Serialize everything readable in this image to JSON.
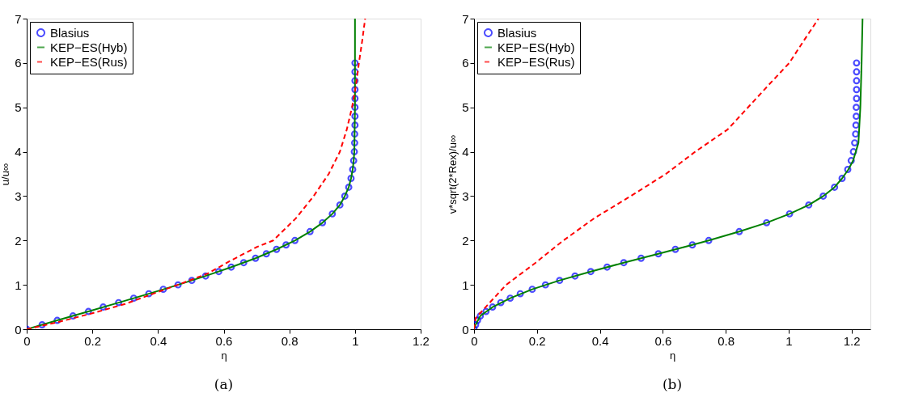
{
  "chart_data": [
    {
      "type": "line",
      "xlabel": "η",
      "ylabel": "u/u∞",
      "xlim": [
        0,
        1.2
      ],
      "ylim": [
        0,
        7
      ],
      "xticks": [
        0,
        0.2,
        0.4,
        0.6,
        0.8,
        1,
        1.2
      ],
      "yticks": [
        0,
        1,
        2,
        3,
        4,
        5,
        6,
        7
      ],
      "legend": "top left",
      "annotations": [
        "(a)"
      ],
      "series": [
        {
          "name": "Blasius",
          "type": "scatter",
          "marker": "circle",
          "color": "#0000ff",
          "x": [
            0,
            0.047,
            0.093,
            0.141,
            0.188,
            0.233,
            0.28,
            0.326,
            0.372,
            0.416,
            0.461,
            0.503,
            0.545,
            0.585,
            0.623,
            0.661,
            0.697,
            0.73,
            0.761,
            0.79,
            0.817,
            0.863,
            0.901,
            0.931,
            0.954,
            0.969,
            0.981,
            0.988,
            0.993,
            0.996,
            0.998,
            0.999,
            0.999,
            1.0,
            1.0,
            1.0,
            1.0,
            1.0,
            1.0,
            1.0,
            1.0
          ],
          "values": [
            0,
            0.1,
            0.2,
            0.3,
            0.4,
            0.5,
            0.6,
            0.7,
            0.8,
            0.9,
            1.0,
            1.1,
            1.2,
            1.3,
            1.4,
            1.5,
            1.6,
            1.7,
            1.8,
            1.9,
            2.0,
            2.2,
            2.4,
            2.6,
            2.8,
            3.0,
            3.2,
            3.4,
            3.6,
            3.8,
            4.0,
            4.2,
            4.4,
            4.6,
            4.8,
            5.0,
            5.2,
            5.4,
            5.6,
            5.8,
            6.0
          ]
        },
        {
          "name": "KEP−ES(Hyb)",
          "line_style": "solid",
          "color": "#008000",
          "x": [
            0,
            0.093,
            0.188,
            0.28,
            0.372,
            0.461,
            0.545,
            0.623,
            0.697,
            0.761,
            0.817,
            0.863,
            0.901,
            0.931,
            0.954,
            0.969,
            0.981,
            0.988,
            0.993,
            0.996,
            0.998,
            1.0,
            1.0
          ],
          "values": [
            0,
            0.2,
            0.4,
            0.6,
            0.8,
            1.0,
            1.2,
            1.4,
            1.6,
            1.8,
            2.0,
            2.2,
            2.4,
            2.6,
            2.8,
            3.0,
            3.2,
            3.4,
            3.6,
            3.8,
            4.0,
            5.0,
            7.0
          ]
        },
        {
          "name": "KEP−ES(Rus)",
          "line_style": "dashed",
          "color": "#ff0000",
          "x": [
            0,
            0.1,
            0.2,
            0.3,
            0.4,
            0.46,
            0.55,
            0.62,
            0.7,
            0.751,
            0.82,
            0.874,
            0.92,
            0.954,
            0.975,
            0.991,
            1.003,
            1.012,
            1.022,
            1.031
          ],
          "values": [
            0,
            0.17,
            0.36,
            0.57,
            0.84,
            1.0,
            1.25,
            1.54,
            1.85,
            2.0,
            2.5,
            3.0,
            3.5,
            4.0,
            4.5,
            5.0,
            5.5,
            6.0,
            6.5,
            7.0
          ]
        }
      ]
    },
    {
      "type": "line",
      "xlabel": "η",
      "ylabel": "v*sqrt(2*Rex)/u∞",
      "xlim": [
        0,
        1.26
      ],
      "ylim": [
        0,
        7
      ],
      "xticks": [
        0,
        0.2,
        0.4,
        0.6,
        0.8,
        1,
        1.2
      ],
      "yticks": [
        0,
        1,
        2,
        3,
        4,
        5,
        6,
        7
      ],
      "legend": "top left",
      "annotations": [
        "(b)"
      ],
      "series": [
        {
          "name": "Blasius",
          "type": "scatter",
          "marker": "circle",
          "color": "#0000ff",
          "x": [
            0,
            0.005,
            0.011,
            0.02,
            0.038,
            0.059,
            0.085,
            0.115,
            0.147,
            0.185,
            0.227,
            0.272,
            0.321,
            0.371,
            0.423,
            0.476,
            0.531,
            0.586,
            0.64,
            0.694,
            0.746,
            0.843,
            0.93,
            1.003,
            1.064,
            1.11,
            1.146,
            1.17,
            1.188,
            1.199,
            1.206,
            1.21,
            1.213,
            1.214,
            1.215,
            1.215,
            1.216,
            1.216,
            1.216,
            1.216,
            1.216
          ],
          "values": [
            0,
            0.1,
            0.2,
            0.3,
            0.4,
            0.5,
            0.6,
            0.7,
            0.8,
            0.9,
            1.0,
            1.1,
            1.2,
            1.3,
            1.4,
            1.5,
            1.6,
            1.7,
            1.8,
            1.9,
            2.0,
            2.2,
            2.4,
            2.6,
            2.8,
            3.0,
            3.2,
            3.4,
            3.6,
            3.8,
            4.0,
            4.2,
            4.4,
            4.6,
            4.8,
            5.0,
            5.2,
            5.4,
            5.6,
            5.8,
            6.0
          ]
        },
        {
          "name": "KEP−ES(Hyb)",
          "line_style": "solid",
          "color": "#008000",
          "x": [
            0,
            0.005,
            0.02,
            0.059,
            0.115,
            0.185,
            0.272,
            0.371,
            0.476,
            0.586,
            0.694,
            0.746,
            0.843,
            0.93,
            1.003,
            1.064,
            1.11,
            1.146,
            1.17,
            1.19,
            1.205,
            1.222,
            1.228,
            1.232,
            1.235
          ],
          "values": [
            0,
            0.1,
            0.3,
            0.5,
            0.7,
            0.9,
            1.1,
            1.3,
            1.5,
            1.7,
            1.9,
            2.0,
            2.2,
            2.4,
            2.6,
            2.8,
            3.0,
            3.2,
            3.4,
            3.6,
            3.8,
            4.2,
            5.0,
            6.0,
            7.0
          ]
        },
        {
          "name": "KEP−ES(Rus)",
          "line_style": "dashed",
          "color": "#ff0000",
          "x": [
            0,
            0.005,
            0.037,
            0.102,
            0.196,
            0.284,
            0.382,
            0.498,
            0.61,
            0.703,
            0.806,
            0.871,
            0.936,
            1.002,
            1.048,
            1.095
          ],
          "values": [
            0,
            0.25,
            0.5,
            1.0,
            1.5,
            2.0,
            2.5,
            3.0,
            3.5,
            4.0,
            4.5,
            5.0,
            5.5,
            6.0,
            6.5,
            7.0
          ]
        }
      ]
    }
  ]
}
